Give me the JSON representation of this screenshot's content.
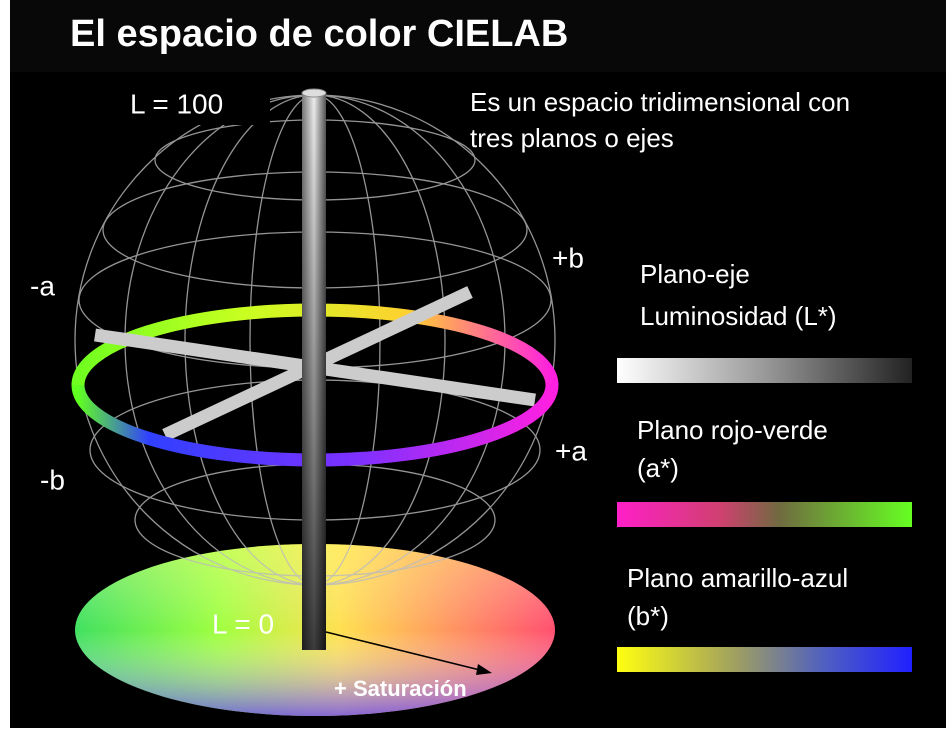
{
  "title": "El espacio de color CIELAB",
  "description": [
    "Es un espacio tridimensional con",
    "tres planos o ejes"
  ],
  "axis_labels": {
    "l_max": "L = 100",
    "l_min": "L = 0",
    "neg_a": "-a",
    "pos_b": "+b",
    "pos_a": "+a",
    "neg_b": "-b",
    "saturation": "+ Saturación"
  },
  "legend": [
    {
      "lines": [
        "Plano-eje",
        "Luminosidad (L*)"
      ]
    },
    {
      "lines": [
        "Plano rojo-verde",
        "(a*)"
      ]
    },
    {
      "lines": [
        "Plano amarillo-azul",
        "(b*)"
      ]
    }
  ]
}
